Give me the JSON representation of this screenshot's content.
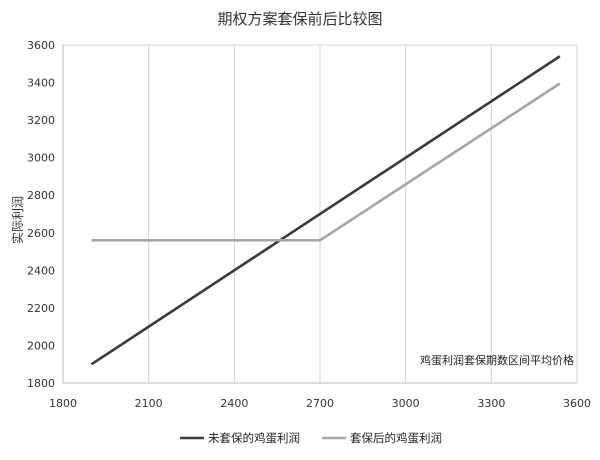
{
  "chart_data": {
    "type": "line",
    "title": "期权方案套保前后比较图",
    "xlabel": "",
    "ylabel": "实际利润",
    "annotation": "鸡蛋利润套保期数区间平均价格",
    "xlim": [
      1800,
      3600
    ],
    "ylim": [
      1800,
      3600
    ],
    "xticks": [
      1800,
      2100,
      2400,
      2700,
      3000,
      3300,
      3600
    ],
    "yticks": [
      1800,
      2000,
      2200,
      2400,
      2600,
      2800,
      3000,
      3200,
      3400,
      3600
    ],
    "grid": "vertical",
    "legend_position": "bottom",
    "series": [
      {
        "name": "未套保的鸡蛋利润",
        "color": "#3a3a3a",
        "x": [
          1900,
          3540
        ],
        "y": [
          1900,
          3540
        ]
      },
      {
        "name": "套保后的鸡蛋利润",
        "color": "#a6a6a6",
        "x": [
          1900,
          2700,
          3540
        ],
        "y": [
          2560,
          2560,
          3395
        ]
      }
    ]
  }
}
